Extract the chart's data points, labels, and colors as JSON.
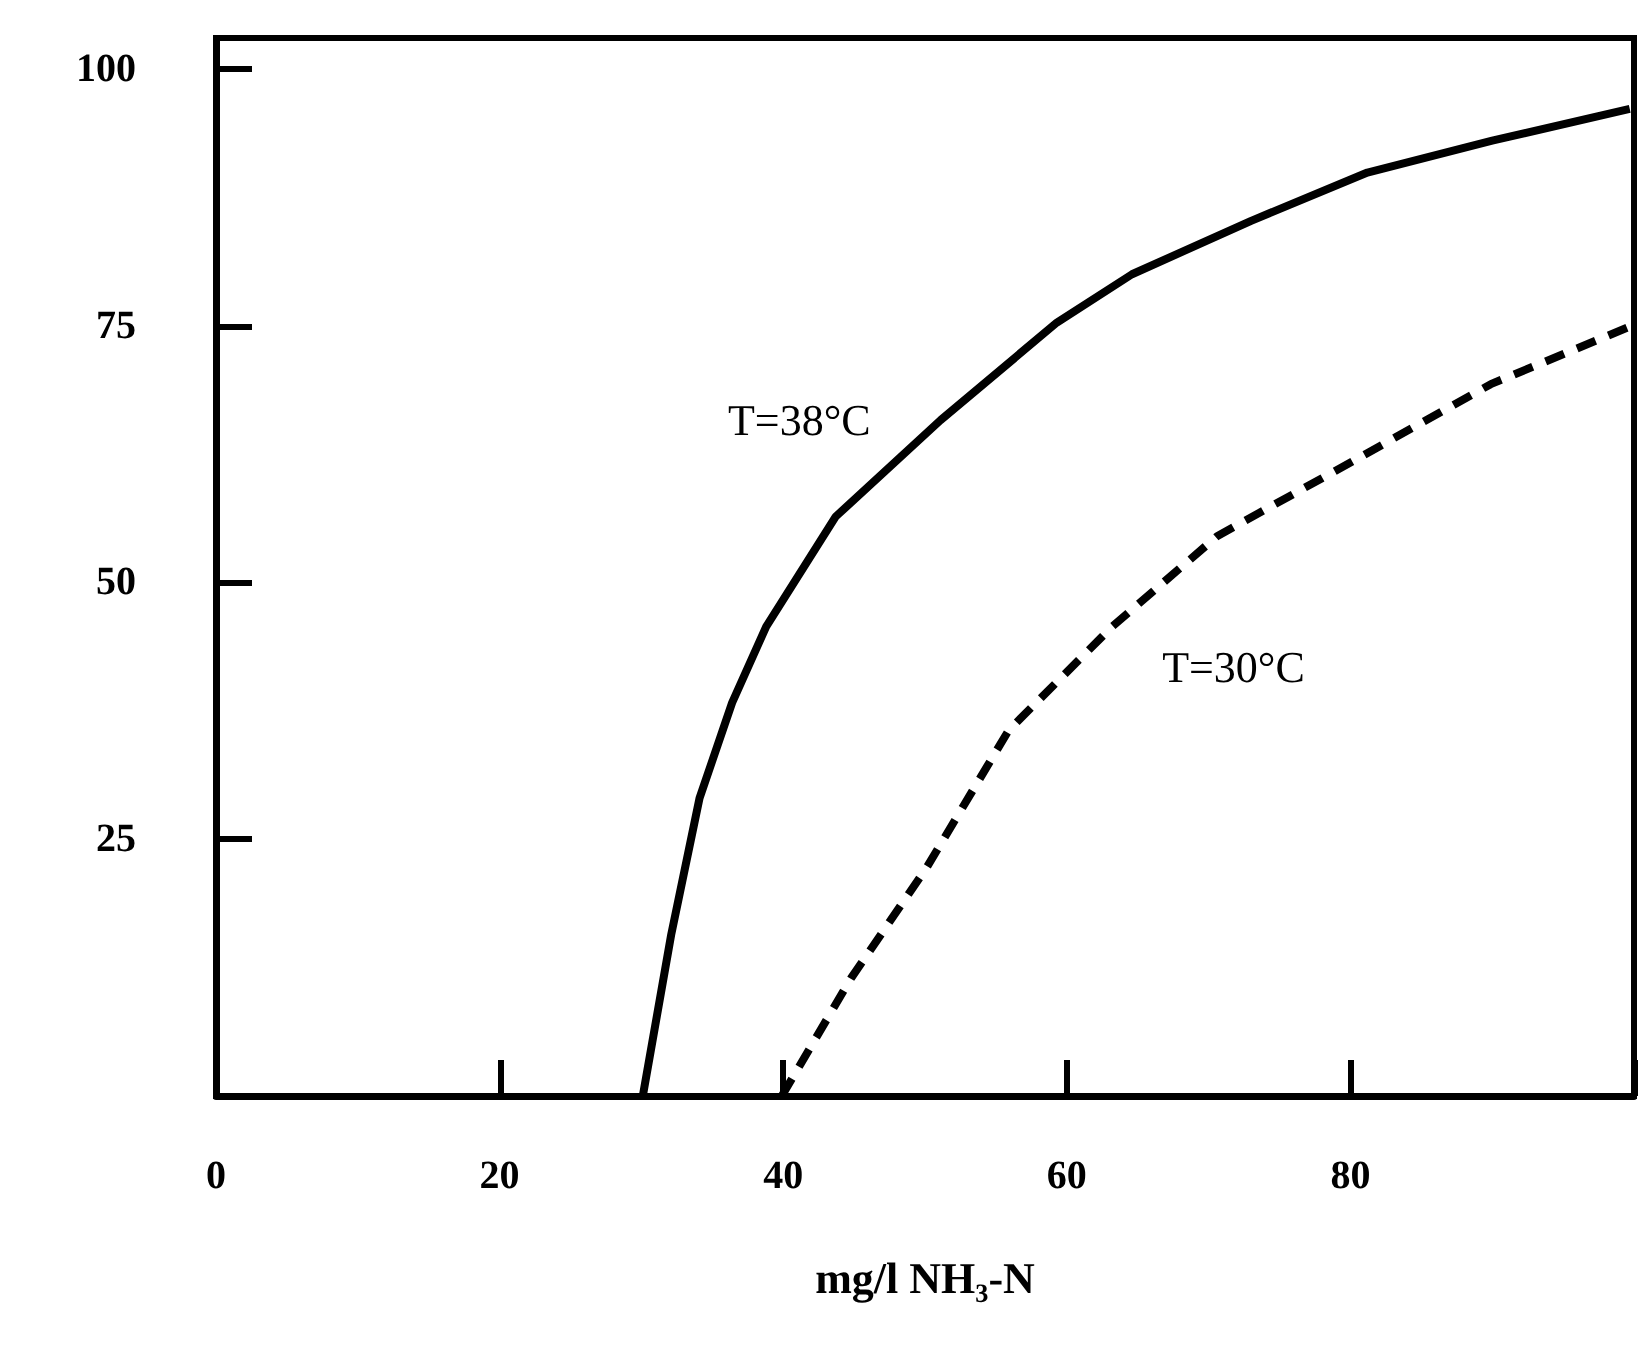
{
  "chart_data": {
    "type": "line",
    "xlabel": "mg/l NH₃-N",
    "xlim": [
      0,
      100
    ],
    "xticks": [
      0,
      20,
      40,
      60,
      80,
      {
        "value": 100,
        "label": null
      }
    ],
    "ylim": [
      0,
      103
    ],
    "yticks": [
      {
        "value": 0,
        "label": null
      },
      25,
      50,
      75,
      100
    ],
    "series": [
      {
        "name": "T=38°C",
        "color": "#000000",
        "line_style": "solid",
        "x": [
          30.1,
          32.1,
          34.1,
          36.4,
          38.8,
          43.7,
          51.1,
          59.3,
          64.6,
          73,
          81.2,
          90,
          99.7
        ],
        "values": [
          0,
          15.7,
          29,
          38.3,
          45.7,
          56.4,
          65.8,
          75.3,
          80,
          85.2,
          89.9,
          93,
          96.1
        ]
      },
      {
        "name": "T=30°C",
        "color": "#000000",
        "line_style": "dashed",
        "x": [
          39.9,
          44.8,
          50.1,
          55.9,
          63.2,
          70.6,
          80.3,
          89.9,
          99.7
        ],
        "values": [
          0,
          11.5,
          22.2,
          35.6,
          45.7,
          54.5,
          61.9,
          69.3,
          74.9
        ]
      }
    ],
    "grid": false,
    "marker": "none"
  }
}
